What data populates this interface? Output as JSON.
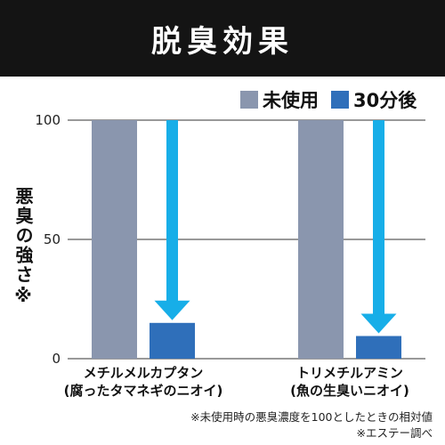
{
  "banner": {
    "title": "脱臭効果"
  },
  "colors": {
    "before": "#8a96ae",
    "after": "#2f6fba",
    "arrow": "#17aee8",
    "axis": "#333333"
  },
  "chart_data": {
    "type": "bar",
    "title": "脱臭効果",
    "ylabel": "悪臭の強さ※",
    "xlabel": "",
    "ylim": [
      0,
      100
    ],
    "yticks": [
      0,
      50,
      100
    ],
    "grid": true,
    "legend_position": "top-right",
    "categories": [
      {
        "line1": "メチルメルカプタン",
        "line2": "(腐ったタマネギのニオイ)"
      },
      {
        "line1": "トリメチルアミン",
        "line2": "(魚の生臭いニオイ)"
      }
    ],
    "series": [
      {
        "name": "未使用",
        "values": [
          100,
          100
        ]
      },
      {
        "name": "30分後",
        "values": [
          15,
          9.5
        ]
      }
    ]
  },
  "footnotes": {
    "line1": "※未使用時の悪臭濃度を100としたときの相対値",
    "line2": "※エステー調べ"
  }
}
